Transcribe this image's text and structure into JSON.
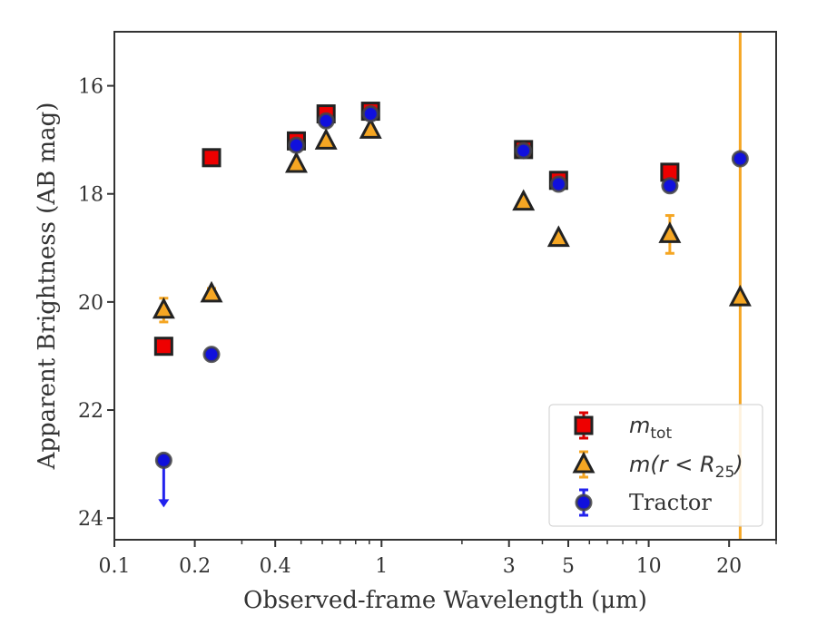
{
  "chart_data": {
    "type": "scatter",
    "xlabel": "Observed-frame Wavelength (μm)",
    "ylabel": "Apparent Brightness (AB mag)",
    "xscale": "log",
    "xlim": [
      0.1,
      30
    ],
    "ylim": [
      24.4,
      15
    ],
    "y_inverted": true,
    "grid": false,
    "legend_position": "bottom-right",
    "x_ticks": [
      0.1,
      0.2,
      0.4,
      1,
      3,
      5,
      10,
      20
    ],
    "x_tick_labels": [
      "0.1",
      "0.2",
      "0.4",
      "1",
      "3",
      "5",
      "10",
      "20"
    ],
    "y_ticks": [
      16,
      18,
      20,
      22,
      24
    ],
    "y_tick_labels": [
      "16",
      "18",
      "20",
      "22",
      "24"
    ],
    "vertical_line": {
      "x": 22.0,
      "color": "#f5a623"
    },
    "series": [
      {
        "name": "m_tot",
        "legend_main": "m",
        "legend_sub": "tot",
        "legend_suffix": "",
        "marker": "square",
        "fill": "#ee0000",
        "edge": "#222222",
        "errcolor": "#dd0000",
        "points": [
          {
            "x": 0.153,
            "y": 20.82
          },
          {
            "x": 0.231,
            "y": 17.33
          },
          {
            "x": 0.48,
            "y": 17.02
          },
          {
            "x": 0.62,
            "y": 16.52
          },
          {
            "x": 0.91,
            "y": 16.47
          },
          {
            "x": 3.4,
            "y": 17.18
          },
          {
            "x": 4.6,
            "y": 17.75
          },
          {
            "x": 12.0,
            "y": 17.6
          }
        ]
      },
      {
        "name": "m(r < R25)",
        "legend_main": "m(r < R",
        "legend_sub": "25",
        "legend_suffix": ")",
        "marker": "triangle",
        "fill": "#f5a623",
        "edge": "#222222",
        "errcolor": "#f5a623",
        "points": [
          {
            "x": 0.153,
            "y": 20.15,
            "yerr": 0.22
          },
          {
            "x": 0.231,
            "y": 19.85,
            "yerr": 0.1
          },
          {
            "x": 0.48,
            "y": 17.45
          },
          {
            "x": 0.62,
            "y": 17.02
          },
          {
            "x": 0.91,
            "y": 16.82
          },
          {
            "x": 3.4,
            "y": 18.15
          },
          {
            "x": 4.6,
            "y": 18.82
          },
          {
            "x": 12.0,
            "y": 18.75,
            "yerr": 0.35
          },
          {
            "x": 22.0,
            "y": 19.92
          }
        ]
      },
      {
        "name": "Tractor",
        "legend_main": "Tractor",
        "legend_sub": "",
        "legend_suffix": "",
        "marker": "circle",
        "fill": "#1010dd",
        "edge": "#444444",
        "errcolor": "#2222ee",
        "points": [
          {
            "x": 0.153,
            "y": 22.93,
            "upper_limit": true
          },
          {
            "x": 0.231,
            "y": 20.97
          },
          {
            "x": 0.48,
            "y": 17.1
          },
          {
            "x": 0.62,
            "y": 16.65
          },
          {
            "x": 0.91,
            "y": 16.52
          },
          {
            "x": 3.4,
            "y": 17.2
          },
          {
            "x": 4.6,
            "y": 17.82
          },
          {
            "x": 12.0,
            "y": 17.85
          },
          {
            "x": 22.0,
            "y": 17.35
          }
        ]
      }
    ]
  }
}
